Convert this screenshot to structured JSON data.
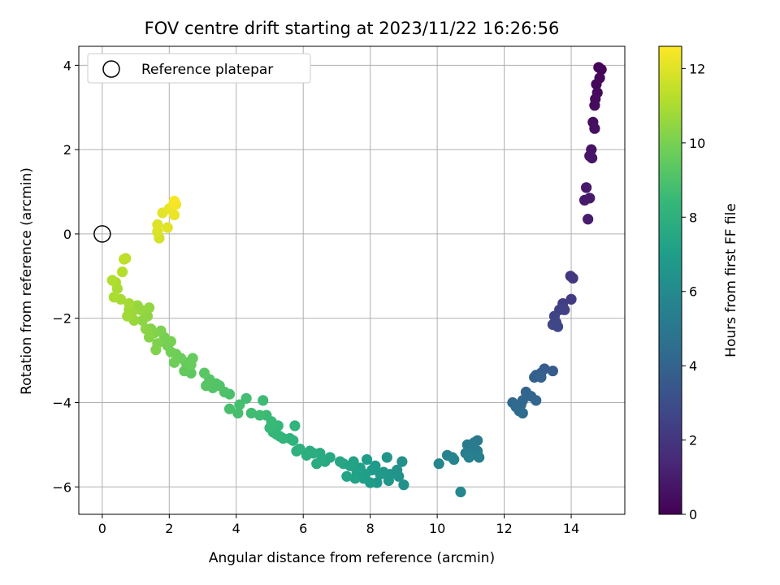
{
  "chart_data": {
    "type": "scatter",
    "title": "FOV centre drift starting at 2023/11/22 16:26:56",
    "xlabel": "Angular distance from reference (arcmin)",
    "ylabel": "Rotation from reference (arcmin)",
    "xlim": [
      -0.7,
      15.6
    ],
    "ylim": [
      -6.65,
      4.45
    ],
    "xticks": [
      0,
      2,
      4,
      6,
      8,
      10,
      12,
      14
    ],
    "yticks": [
      -6,
      -4,
      -2,
      0,
      2,
      4
    ],
    "xtick_labels": [
      "0",
      "2",
      "4",
      "6",
      "8",
      "10",
      "12",
      "14"
    ],
    "ytick_labels": [
      "−6",
      "−4",
      "−2",
      "0",
      "2",
      "4"
    ],
    "grid": true,
    "legend": {
      "placement": "upper-left",
      "entries": [
        "Reference platepar"
      ]
    },
    "reference_point": {
      "x": 0,
      "y": 0,
      "label": "Reference platepar"
    },
    "colorbar": {
      "label": "Hours from first FF file",
      "range": [
        0,
        12.6
      ],
      "ticks": [
        0,
        2,
        4,
        6,
        8,
        10,
        12
      ],
      "tick_labels": [
        "0",
        "2",
        "4",
        "6",
        "8",
        "10",
        "12"
      ],
      "colormap": "viridis",
      "colors": [
        "#440154",
        "#482878",
        "#3e4989",
        "#31688e",
        "#26828e",
        "#1f9e89",
        "#35b779",
        "#6ece58",
        "#b5de2b",
        "#fde725"
      ]
    },
    "points": [
      {
        "x": 14.82,
        "y": 3.95,
        "t": 0.1
      },
      {
        "x": 14.9,
        "y": 3.9,
        "t": 0.15
      },
      {
        "x": 14.85,
        "y": 3.7,
        "t": 0.2
      },
      {
        "x": 14.75,
        "y": 3.55,
        "t": 0.25
      },
      {
        "x": 14.78,
        "y": 3.35,
        "t": 0.3
      },
      {
        "x": 14.72,
        "y": 3.2,
        "t": 0.35
      },
      {
        "x": 14.7,
        "y": 3.05,
        "t": 0.4
      },
      {
        "x": 14.65,
        "y": 2.65,
        "t": 0.5
      },
      {
        "x": 14.7,
        "y": 2.5,
        "t": 0.55
      },
      {
        "x": 14.6,
        "y": 2.0,
        "t": 0.65
      },
      {
        "x": 14.55,
        "y": 1.85,
        "t": 0.7
      },
      {
        "x": 14.62,
        "y": 1.8,
        "t": 0.72
      },
      {
        "x": 14.45,
        "y": 1.1,
        "t": 0.85
      },
      {
        "x": 14.55,
        "y": 0.85,
        "t": 0.9
      },
      {
        "x": 14.4,
        "y": 0.8,
        "t": 0.92
      },
      {
        "x": 14.5,
        "y": 0.35,
        "t": 1.0
      },
      {
        "x": 13.98,
        "y": -1.0,
        "t": 2.0
      },
      {
        "x": 14.05,
        "y": -1.05,
        "t": 2.05
      },
      {
        "x": 14.0,
        "y": -1.55,
        "t": 2.2
      },
      {
        "x": 13.75,
        "y": -1.65,
        "t": 2.35
      },
      {
        "x": 13.65,
        "y": -1.8,
        "t": 2.45
      },
      {
        "x": 13.8,
        "y": -1.8,
        "t": 2.5
      },
      {
        "x": 13.5,
        "y": -1.95,
        "t": 2.6
      },
      {
        "x": 13.55,
        "y": -2.1,
        "t": 2.65
      },
      {
        "x": 13.45,
        "y": -2.15,
        "t": 2.7
      },
      {
        "x": 13.6,
        "y": -2.2,
        "t": 2.75
      },
      {
        "x": 13.45,
        "y": -3.25,
        "t": 3.6
      },
      {
        "x": 13.2,
        "y": -3.2,
        "t": 3.7
      },
      {
        "x": 13.1,
        "y": -3.3,
        "t": 3.75
      },
      {
        "x": 12.95,
        "y": -3.35,
        "t": 3.8
      },
      {
        "x": 12.9,
        "y": -3.4,
        "t": 3.85
      },
      {
        "x": 13.1,
        "y": -3.4,
        "t": 3.9
      },
      {
        "x": 12.65,
        "y": -3.75,
        "t": 4.0
      },
      {
        "x": 12.8,
        "y": -3.85,
        "t": 4.05
      },
      {
        "x": 12.95,
        "y": -3.95,
        "t": 4.1
      },
      {
        "x": 12.55,
        "y": -3.95,
        "t": 4.15
      },
      {
        "x": 12.5,
        "y": -4.05,
        "t": 4.2
      },
      {
        "x": 12.25,
        "y": -4.0,
        "t": 4.25
      },
      {
        "x": 12.35,
        "y": -4.1,
        "t": 4.3
      },
      {
        "x": 12.45,
        "y": -4.2,
        "t": 4.35
      },
      {
        "x": 12.55,
        "y": -4.25,
        "t": 4.4
      },
      {
        "x": 11.2,
        "y": -4.9,
        "t": 5.1
      },
      {
        "x": 11.1,
        "y": -4.95,
        "t": 5.15
      },
      {
        "x": 10.9,
        "y": -5.0,
        "t": 5.2
      },
      {
        "x": 11.05,
        "y": -5.05,
        "t": 5.25
      },
      {
        "x": 11.2,
        "y": -5.15,
        "t": 5.3
      },
      {
        "x": 10.85,
        "y": -5.2,
        "t": 5.35
      },
      {
        "x": 11.0,
        "y": -5.25,
        "t": 5.4
      },
      {
        "x": 11.25,
        "y": -5.3,
        "t": 5.45
      },
      {
        "x": 10.95,
        "y": -5.3,
        "t": 5.5
      },
      {
        "x": 10.3,
        "y": -5.25,
        "t": 5.6
      },
      {
        "x": 10.45,
        "y": -5.3,
        "t": 5.65
      },
      {
        "x": 10.5,
        "y": -5.35,
        "t": 5.7
      },
      {
        "x": 10.05,
        "y": -5.45,
        "t": 5.8
      },
      {
        "x": 10.7,
        "y": -6.12,
        "t": 5.9
      },
      {
        "x": 8.95,
        "y": -5.4,
        "t": 6.3
      },
      {
        "x": 9.0,
        "y": -5.95,
        "t": 6.35
      },
      {
        "x": 8.8,
        "y": -5.6,
        "t": 6.4
      },
      {
        "x": 8.85,
        "y": -5.75,
        "t": 6.45
      },
      {
        "x": 8.6,
        "y": -5.7,
        "t": 6.5
      },
      {
        "x": 8.5,
        "y": -5.3,
        "t": 6.55
      },
      {
        "x": 8.55,
        "y": -5.85,
        "t": 6.6
      },
      {
        "x": 8.4,
        "y": -5.65,
        "t": 6.65
      },
      {
        "x": 8.3,
        "y": -5.7,
        "t": 6.7
      },
      {
        "x": 8.2,
        "y": -5.9,
        "t": 6.75
      },
      {
        "x": 8.15,
        "y": -5.5,
        "t": 6.8
      },
      {
        "x": 8.05,
        "y": -5.6,
        "t": 6.85
      },
      {
        "x": 8.0,
        "y": -5.9,
        "t": 6.9
      },
      {
        "x": 7.9,
        "y": -5.35,
        "t": 6.95
      },
      {
        "x": 7.85,
        "y": -5.7,
        "t": 7.0
      },
      {
        "x": 7.8,
        "y": -5.8,
        "t": 7.05
      },
      {
        "x": 7.7,
        "y": -5.55,
        "t": 7.1
      },
      {
        "x": 7.6,
        "y": -5.65,
        "t": 7.15
      },
      {
        "x": 7.55,
        "y": -5.8,
        "t": 7.2
      },
      {
        "x": 7.5,
        "y": -5.4,
        "t": 7.25
      },
      {
        "x": 7.4,
        "y": -5.5,
        "t": 7.3
      },
      {
        "x": 7.3,
        "y": -5.75,
        "t": 7.35
      },
      {
        "x": 7.2,
        "y": -5.45,
        "t": 7.4
      },
      {
        "x": 7.1,
        "y": -5.4,
        "t": 7.45
      },
      {
        "x": 6.8,
        "y": -5.3,
        "t": 7.55
      },
      {
        "x": 6.65,
        "y": -5.4,
        "t": 7.6
      },
      {
        "x": 6.5,
        "y": -5.2,
        "t": 7.65
      },
      {
        "x": 6.55,
        "y": -5.35,
        "t": 7.7
      },
      {
        "x": 6.4,
        "y": -5.45,
        "t": 7.75
      },
      {
        "x": 6.3,
        "y": -5.2,
        "t": 7.8
      },
      {
        "x": 6.2,
        "y": -5.15,
        "t": 7.85
      },
      {
        "x": 6.1,
        "y": -5.25,
        "t": 7.9
      },
      {
        "x": 5.9,
        "y": -5.1,
        "t": 7.95
      },
      {
        "x": 5.8,
        "y": -5.15,
        "t": 8.0
      },
      {
        "x": 5.7,
        "y": -4.9,
        "t": 8.05
      },
      {
        "x": 5.6,
        "y": -4.85,
        "t": 8.1
      },
      {
        "x": 5.75,
        "y": -4.55,
        "t": 8.15
      },
      {
        "x": 5.4,
        "y": -4.85,
        "t": 8.2
      },
      {
        "x": 5.3,
        "y": -4.8,
        "t": 8.25
      },
      {
        "x": 5.2,
        "y": -4.75,
        "t": 8.3
      },
      {
        "x": 5.1,
        "y": -4.7,
        "t": 8.35
      },
      {
        "x": 5.25,
        "y": -4.55,
        "t": 8.4
      },
      {
        "x": 5.0,
        "y": -4.6,
        "t": 8.45
      },
      {
        "x": 5.05,
        "y": -4.45,
        "t": 8.5
      },
      {
        "x": 4.9,
        "y": -4.3,
        "t": 8.55
      },
      {
        "x": 4.8,
        "y": -3.95,
        "t": 8.6
      },
      {
        "x": 4.7,
        "y": -4.3,
        "t": 8.65
      },
      {
        "x": 4.45,
        "y": -4.25,
        "t": 8.7
      },
      {
        "x": 4.3,
        "y": -3.9,
        "t": 8.75
      },
      {
        "x": 4.1,
        "y": -4.05,
        "t": 8.8
      },
      {
        "x": 4.05,
        "y": -4.25,
        "t": 8.85
      },
      {
        "x": 3.8,
        "y": -4.15,
        "t": 8.9
      },
      {
        "x": 3.8,
        "y": -3.8,
        "t": 8.95
      },
      {
        "x": 3.65,
        "y": -3.75,
        "t": 9.0
      },
      {
        "x": 3.5,
        "y": -3.6,
        "t": 9.05
      },
      {
        "x": 3.4,
        "y": -3.55,
        "t": 9.1
      },
      {
        "x": 3.3,
        "y": -3.65,
        "t": 9.15
      },
      {
        "x": 3.2,
        "y": -3.45,
        "t": 9.2
      },
      {
        "x": 3.1,
        "y": -3.6,
        "t": 9.25
      },
      {
        "x": 3.05,
        "y": -3.3,
        "t": 9.3
      },
      {
        "x": 2.65,
        "y": -3.3,
        "t": 9.4
      },
      {
        "x": 2.55,
        "y": -3.15,
        "t": 9.45
      },
      {
        "x": 2.45,
        "y": -3.25,
        "t": 9.5
      },
      {
        "x": 2.5,
        "y": -3.05,
        "t": 9.55
      },
      {
        "x": 2.7,
        "y": -2.95,
        "t": 9.6
      },
      {
        "x": 2.65,
        "y": -3.1,
        "t": 9.65
      },
      {
        "x": 2.35,
        "y": -2.95,
        "t": 9.7
      },
      {
        "x": 2.2,
        "y": -2.85,
        "t": 9.75
      },
      {
        "x": 2.15,
        "y": -3.05,
        "t": 9.8
      },
      {
        "x": 2.05,
        "y": -2.8,
        "t": 9.85
      },
      {
        "x": 1.95,
        "y": -2.65,
        "t": 9.9
      },
      {
        "x": 2.05,
        "y": -2.55,
        "t": 9.95
      },
      {
        "x": 1.85,
        "y": -2.45,
        "t": 10.0
      },
      {
        "x": 1.75,
        "y": -2.3,
        "t": 10.05
      },
      {
        "x": 1.65,
        "y": -2.6,
        "t": 10.1
      },
      {
        "x": 1.6,
        "y": -2.75,
        "t": 10.15
      },
      {
        "x": 1.55,
        "y": -2.35,
        "t": 10.2
      },
      {
        "x": 1.45,
        "y": -2.25,
        "t": 10.25
      },
      {
        "x": 1.4,
        "y": -2.45,
        "t": 10.3
      },
      {
        "x": 1.3,
        "y": -2.25,
        "t": 10.35
      },
      {
        "x": 1.2,
        "y": -2.05,
        "t": 10.4
      },
      {
        "x": 1.35,
        "y": -1.95,
        "t": 10.45
      },
      {
        "x": 1.4,
        "y": -1.75,
        "t": 10.5
      },
      {
        "x": 1.15,
        "y": -1.8,
        "t": 10.55
      },
      {
        "x": 1.05,
        "y": -1.7,
        "t": 10.6
      },
      {
        "x": 0.95,
        "y": -2.05,
        "t": 10.65
      },
      {
        "x": 0.9,
        "y": -1.85,
        "t": 10.7
      },
      {
        "x": 0.8,
        "y": -1.8,
        "t": 10.75
      },
      {
        "x": 0.75,
        "y": -1.95,
        "t": 10.8
      },
      {
        "x": 0.8,
        "y": -1.65,
        "t": 10.85
      },
      {
        "x": 0.55,
        "y": -1.55,
        "t": 10.9
      },
      {
        "x": 0.45,
        "y": -1.3,
        "t": 10.95
      },
      {
        "x": 0.35,
        "y": -1.5,
        "t": 11.0
      },
      {
        "x": 0.4,
        "y": -1.15,
        "t": 11.05
      },
      {
        "x": 0.3,
        "y": -1.1,
        "t": 11.1
      },
      {
        "x": 0.6,
        "y": -0.9,
        "t": 11.2
      },
      {
        "x": 0.7,
        "y": -0.58,
        "t": 11.3
      },
      {
        "x": 0.65,
        "y": -0.6,
        "t": 11.35
      },
      {
        "x": 1.7,
        "y": -0.1,
        "t": 11.8
      },
      {
        "x": 1.65,
        "y": 0.05,
        "t": 11.9
      },
      {
        "x": 1.65,
        "y": 0.22,
        "t": 12.0
      },
      {
        "x": 1.95,
        "y": 0.15,
        "t": 12.05
      },
      {
        "x": 1.8,
        "y": 0.5,
        "t": 12.1
      },
      {
        "x": 2.0,
        "y": 0.6,
        "t": 12.2
      },
      {
        "x": 2.15,
        "y": 0.45,
        "t": 12.25
      },
      {
        "x": 2.1,
        "y": 0.65,
        "t": 12.3
      },
      {
        "x": 2.2,
        "y": 0.7,
        "t": 12.4
      },
      {
        "x": 2.15,
        "y": 0.78,
        "t": 12.5
      }
    ]
  }
}
